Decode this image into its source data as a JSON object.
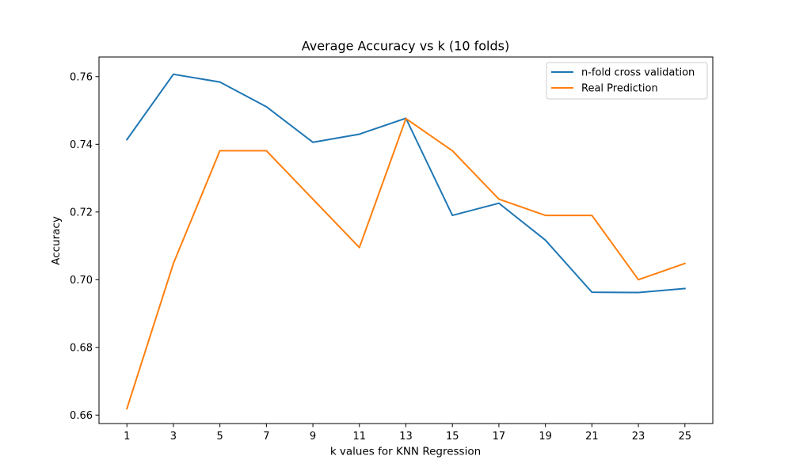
{
  "chart_data": {
    "type": "line",
    "title": "Average Accuracy vs k (10 folds)",
    "xlabel": "k values for KNN Regression",
    "ylabel": "Accuracy",
    "x": [
      1,
      3,
      5,
      7,
      9,
      11,
      13,
      15,
      17,
      19,
      21,
      23,
      25
    ],
    "xticks": [
      "1",
      "3",
      "5",
      "7",
      "9",
      "11",
      "13",
      "15",
      "17",
      "19",
      "21",
      "23",
      "25"
    ],
    "yticks": [
      "0.66",
      "0.68",
      "0.70",
      "0.72",
      "0.74",
      "0.76"
    ],
    "ytick_values": [
      0.66,
      0.68,
      0.7,
      0.72,
      0.74,
      0.76
    ],
    "xlim": [
      -0.2,
      26.2
    ],
    "ylim": [
      0.6575,
      0.7658
    ],
    "grid": false,
    "legend_position": "top-right",
    "series": [
      {
        "name": "n-fold cross validation",
        "color": "#1f77b4",
        "values": [
          0.7414,
          0.7607,
          0.7584,
          0.7511,
          0.7406,
          0.743,
          0.7477,
          0.719,
          0.7226,
          0.7117,
          0.6963,
          0.6962,
          0.6974
        ]
      },
      {
        "name": "Real Prediction",
        "color": "#ff7f0e",
        "values": [
          0.6619,
          0.7048,
          0.7381,
          0.7381,
          0.7238,
          0.7095,
          0.7476,
          0.7381,
          0.7238,
          0.719,
          0.719,
          0.7,
          0.7048
        ]
      }
    ]
  }
}
